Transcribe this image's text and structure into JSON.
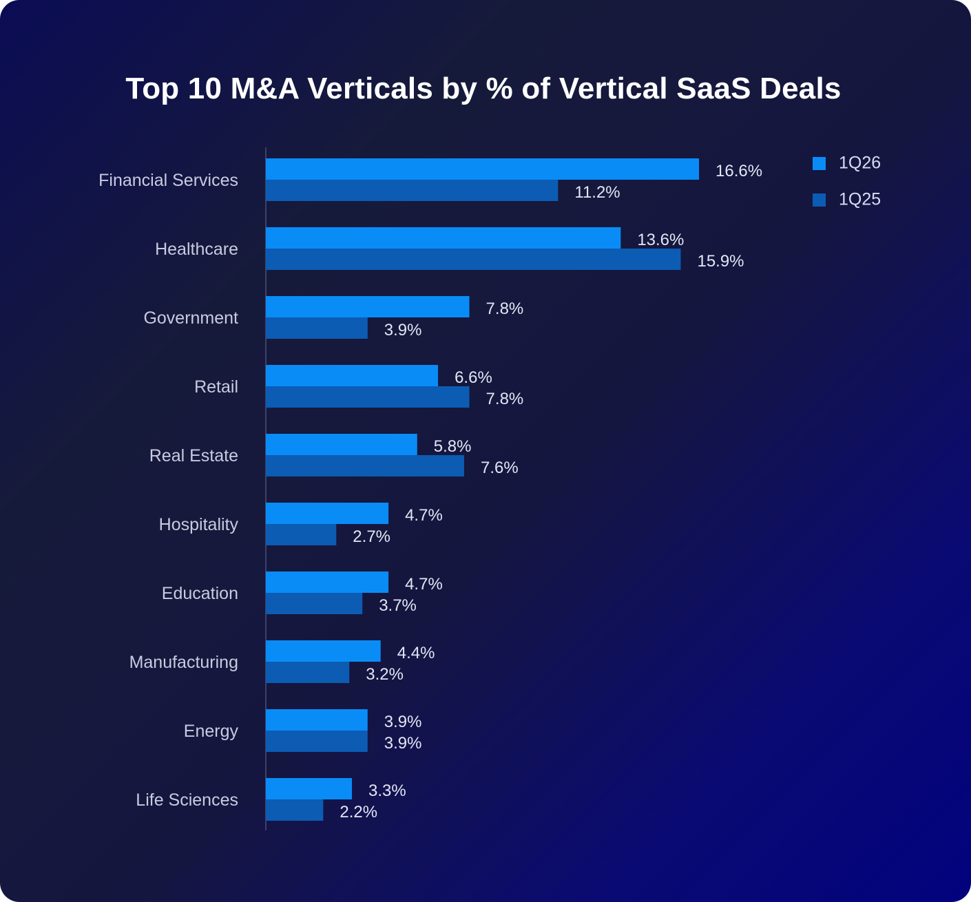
{
  "chart_data": {
    "type": "bar",
    "orientation": "horizontal",
    "title": "Top 10 M&A Verticals by % of Vertical SaaS Deals",
    "categories": [
      "Financial Services",
      "Healthcare",
      "Government",
      "Retail",
      "Real Estate",
      "Hospitality",
      "Education",
      "Manufacturing",
      "Energy",
      "Life Sciences"
    ],
    "series": [
      {
        "name": "1Q26",
        "values": [
          16.6,
          13.6,
          7.8,
          6.6,
          5.8,
          4.7,
          4.7,
          4.4,
          3.9,
          3.3
        ],
        "labels": [
          "16.6%",
          "13.6%",
          "7.8%",
          "6.6%",
          "5.8%",
          "4.7%",
          "4.7%",
          "4.4%",
          "3.9%",
          "3.3%"
        ],
        "color": "#0a8cf7"
      },
      {
        "name": "1Q25",
        "values": [
          11.2,
          15.9,
          3.9,
          7.8,
          7.6,
          2.7,
          3.7,
          3.2,
          3.9,
          2.2
        ],
        "labels": [
          "11.2%",
          "15.9%",
          "3.9%",
          "7.8%",
          "7.6%",
          "2.7%",
          "3.7%",
          "3.2%",
          "3.9%",
          "2.2%"
        ],
        "color": "#0c5cb3"
      }
    ],
    "xlim": [
      0,
      16.6
    ],
    "grid": false,
    "legend_position": "top-right"
  }
}
